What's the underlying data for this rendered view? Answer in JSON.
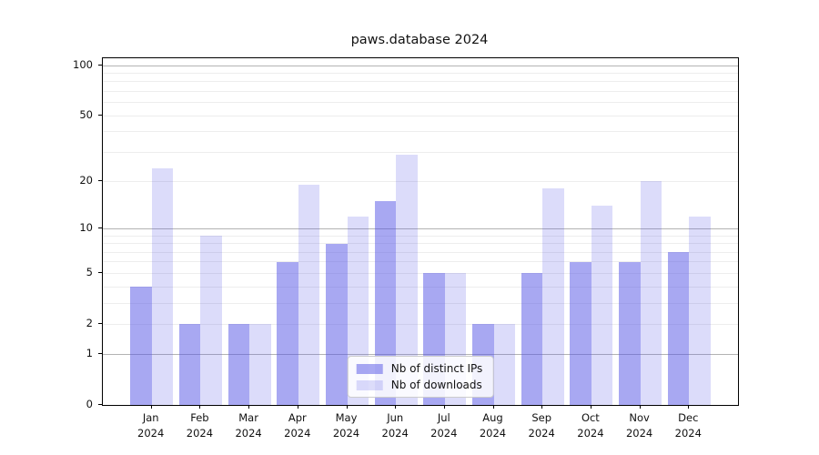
{
  "chart_data": {
    "type": "bar",
    "title": "paws.database 2024",
    "categories": [
      "Jan",
      "Feb",
      "Mar",
      "Apr",
      "May",
      "Jun",
      "Jul",
      "Aug",
      "Sep",
      "Oct",
      "Nov",
      "Dec"
    ],
    "year_label": "2024",
    "series": [
      {
        "name": "Nb of distinct IPs",
        "values": [
          4,
          2,
          2,
          6,
          8,
          15,
          5,
          2,
          5,
          6,
          6,
          7
        ],
        "color": "rgba(81,81,229,0.5)"
      },
      {
        "name": "Nb of downloads",
        "values": [
          24,
          9,
          2,
          19,
          12,
          29,
          5,
          2,
          18,
          14,
          20,
          12
        ],
        "color": "rgba(81,81,229,0.2)"
      }
    ],
    "yscale": "log1p",
    "ylabel": "",
    "xlabel": "",
    "y_ticks": [
      0,
      1,
      2,
      5,
      10,
      20,
      50,
      100
    ],
    "y_major_gridlines": [
      1,
      10,
      100
    ],
    "y_minor_gridlines": [
      2,
      3,
      4,
      5,
      6,
      7,
      8,
      9,
      20,
      30,
      40,
      50,
      60,
      70,
      80,
      90
    ],
    "ylim": [
      0,
      110
    ],
    "grid": true,
    "legend_position": "lower center",
    "colors": {
      "bar_distinct_ips": "rgba(81,81,229,0.5)",
      "bar_downloads": "rgba(81,81,229,0.2)",
      "grid_major": "#b3b3b3",
      "grid_minor": "#ededed",
      "axis_spine": "#000000",
      "text": "#111111"
    }
  }
}
